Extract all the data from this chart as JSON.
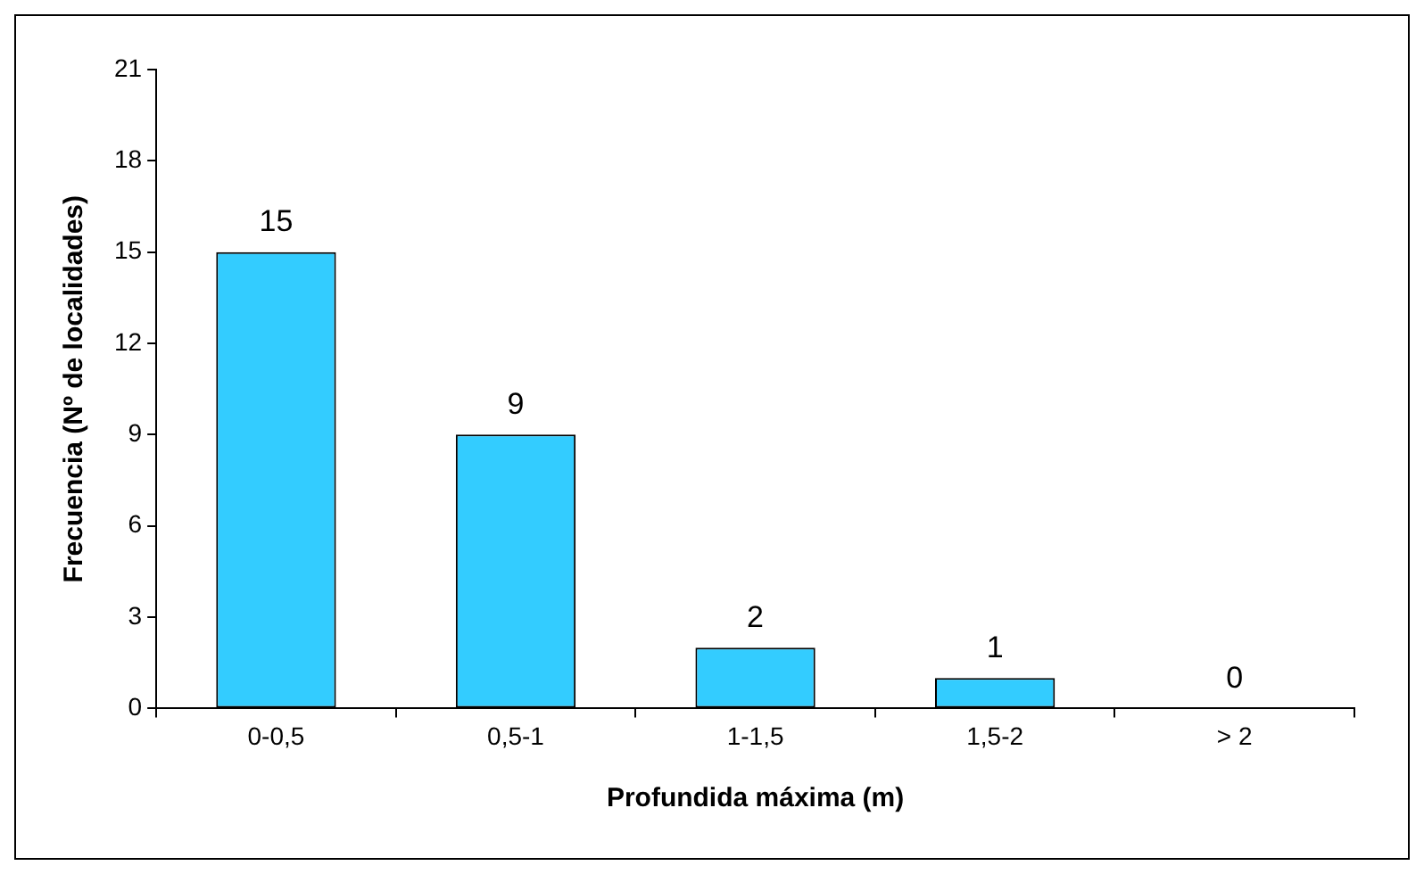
{
  "chart_data": {
    "type": "bar",
    "xlabel": "Profundida máxima (m)",
    "ylabel": "Frecuencia (Nº de localidades)",
    "categories": [
      "0-0,5",
      "0,5-1",
      "1-1,5",
      "1,5-2",
      "> 2"
    ],
    "values": [
      15,
      9,
      2,
      1,
      0
    ],
    "color": "#33ccff",
    "ylim": [
      0,
      21
    ],
    "yticks": [
      0,
      3,
      6,
      9,
      12,
      15,
      18,
      21
    ],
    "grid": false,
    "legend": false,
    "data_labels": true
  }
}
